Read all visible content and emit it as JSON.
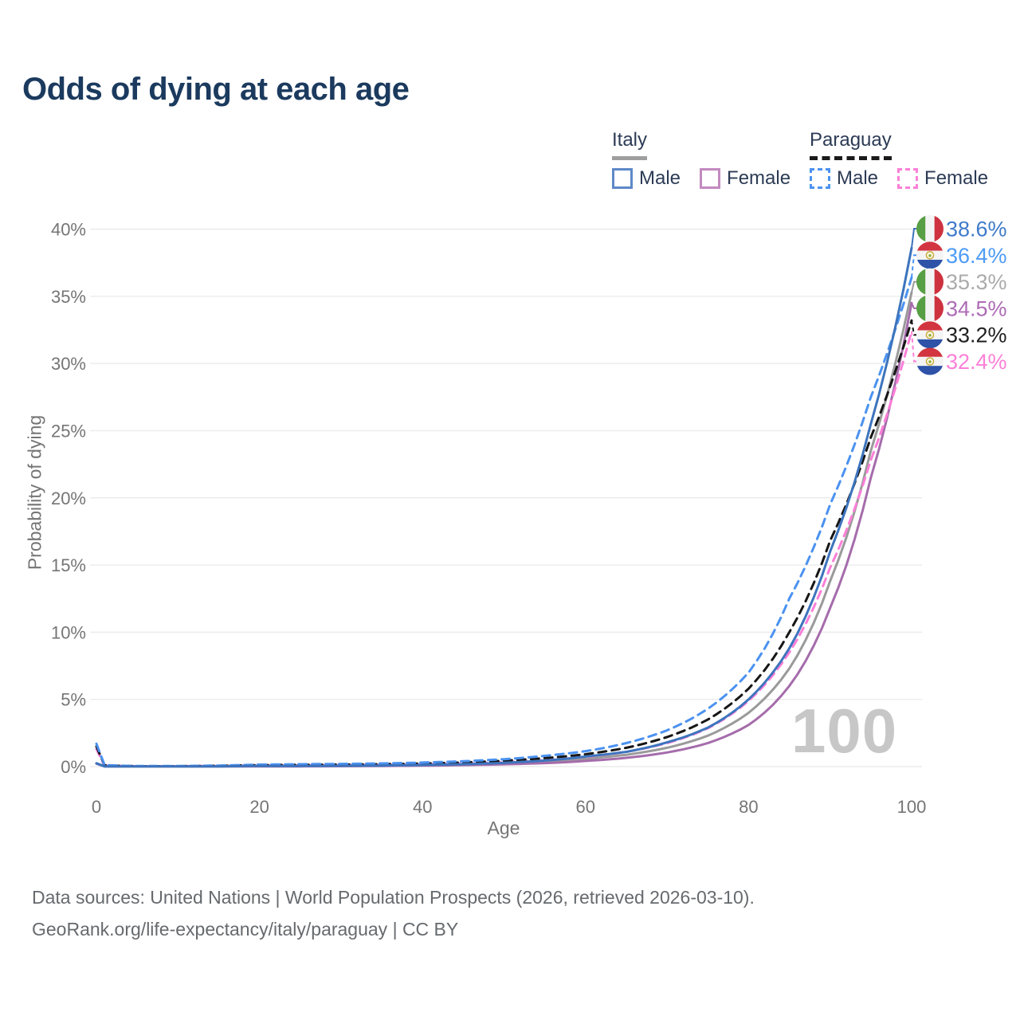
{
  "title": "Odds of dying at each age",
  "watermark": "100",
  "legend": {
    "groups": [
      {
        "label": "Italy",
        "line_style": "solid",
        "underline_color": "#9e9e9e",
        "items": [
          {
            "label": "Male",
            "color": "#5e89c8"
          },
          {
            "label": "Female",
            "color": "#c28ac0"
          }
        ]
      },
      {
        "label": "Paraguay",
        "line_style": "dashed",
        "underline_color": "#1a1a1a",
        "items": [
          {
            "label": "Male",
            "color": "#4b92f0"
          },
          {
            "label": "Female",
            "color": "#fc7fd8"
          }
        ]
      }
    ]
  },
  "footer": {
    "line1": "Data sources: United Nations | World Population Prospects (2026, retrieved 2026-03-10).",
    "line2": "GeoRank.org/life-expectancy/italy/paraguay | CC BY"
  },
  "chart_data": {
    "type": "line",
    "title": "Odds of dying at each age",
    "xlabel": "Age",
    "ylabel": "Probability of dying",
    "xlim": [
      0,
      100
    ],
    "ylim": [
      0,
      40
    ],
    "grid": true,
    "legend_position": "top-right",
    "x_ticks": [
      0,
      20,
      40,
      60,
      80,
      100
    ],
    "y_ticks": [
      "0%",
      "5%",
      "10%",
      "15%",
      "20%",
      "25%",
      "30%",
      "35%",
      "40%"
    ],
    "ages": [
      0,
      1,
      5,
      10,
      15,
      20,
      25,
      30,
      35,
      40,
      45,
      50,
      55,
      60,
      65,
      70,
      75,
      80,
      85,
      90,
      95,
      100
    ],
    "series": [
      {
        "name": "Italy Male",
        "country": "Italy",
        "sex": "Male",
        "style": "solid",
        "color": "#3d74bd",
        "label_color": "#3e7bca",
        "end_label": "38.6%",
        "end_value": 38.6,
        "values": [
          0.25,
          0.02,
          0.01,
          0.01,
          0.02,
          0.05,
          0.05,
          0.06,
          0.08,
          0.12,
          0.18,
          0.28,
          0.45,
          0.75,
          1.1,
          1.8,
          2.9,
          5.0,
          8.8,
          16.0,
          25.5,
          38.6
        ]
      },
      {
        "name": "Italy Female",
        "country": "Italy",
        "sex": "Female",
        "style": "solid",
        "color": "#a56cab",
        "label_color": "#ad6cb5",
        "end_label": "34.5%",
        "end_value": 34.5,
        "values": [
          0.22,
          0.02,
          0.01,
          0.01,
          0.01,
          0.02,
          0.02,
          0.03,
          0.05,
          0.07,
          0.11,
          0.17,
          0.26,
          0.42,
          0.65,
          1.05,
          1.75,
          3.1,
          6.0,
          11.8,
          21.5,
          34.5
        ]
      },
      {
        "name": "Italy Both sexes",
        "country": "Italy",
        "sex": "Both",
        "style": "solid",
        "color": "#9a9a9a",
        "label_color": "#ababab",
        "end_label": "35.3%",
        "end_value": 35.3,
        "values": [
          0.24,
          0.02,
          0.01,
          0.01,
          0.02,
          0.03,
          0.04,
          0.04,
          0.06,
          0.1,
          0.14,
          0.22,
          0.35,
          0.58,
          0.88,
          1.4,
          2.3,
          4.0,
          7.3,
          13.8,
          23.5,
          35.3
        ]
      },
      {
        "name": "Paraguay Male",
        "country": "Paraguay",
        "sex": "Male",
        "style": "dashed",
        "color": "#4b92f0",
        "label_color": "#4d9bf5",
        "end_label": "36.4%",
        "end_value": 36.4,
        "values": [
          1.7,
          0.12,
          0.04,
          0.04,
          0.08,
          0.15,
          0.18,
          0.2,
          0.24,
          0.3,
          0.4,
          0.55,
          0.8,
          1.15,
          1.75,
          2.7,
          4.3,
          7.0,
          12.5,
          19.5,
          27.5,
          36.4
        ]
      },
      {
        "name": "Paraguay Both sexes",
        "country": "Paraguay",
        "sex": "Both",
        "style": "dashed",
        "color": "#161616",
        "label_color": "#1f1f1f",
        "end_label": "33.2%",
        "end_value": 33.2,
        "values": [
          1.5,
          0.1,
          0.03,
          0.03,
          0.06,
          0.11,
          0.13,
          0.15,
          0.18,
          0.23,
          0.31,
          0.44,
          0.63,
          0.92,
          1.4,
          2.2,
          3.5,
          5.8,
          10.0,
          16.8,
          24.5,
          33.2
        ]
      },
      {
        "name": "Paraguay Female",
        "country": "Paraguay",
        "sex": "Female",
        "style": "dashed",
        "color": "#fc7fd8",
        "label_color": "#fb80d8",
        "end_label": "32.4%",
        "end_value": 32.4,
        "values": [
          1.3,
          0.09,
          0.03,
          0.03,
          0.05,
          0.08,
          0.09,
          0.11,
          0.13,
          0.17,
          0.23,
          0.33,
          0.48,
          0.72,
          1.1,
          1.75,
          2.85,
          4.9,
          8.5,
          14.8,
          22.8,
          32.4
        ]
      }
    ]
  }
}
